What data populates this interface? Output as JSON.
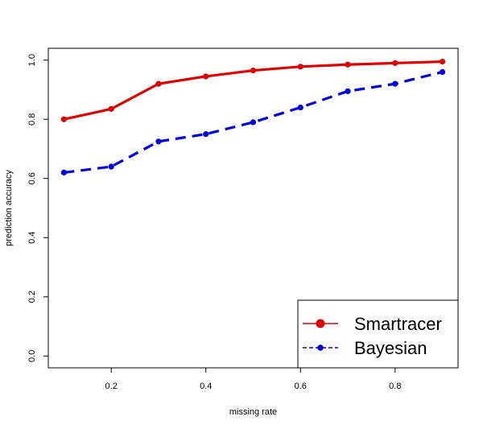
{
  "chart_data": {
    "type": "line",
    "title": "",
    "xlabel": "missing rate",
    "ylabel": "prediction accuracy",
    "xlim": [
      0.067,
      0.933
    ],
    "ylim": [
      -0.04,
      1.04
    ],
    "xticks": [
      0.2,
      0.4,
      0.6,
      0.8
    ],
    "xtick_labels": [
      "0.2",
      "0.4",
      "0.6",
      "0.8"
    ],
    "yticks": [
      0.0,
      0.2,
      0.4,
      0.6,
      0.8,
      1.0
    ],
    "ytick_labels": [
      "0.0",
      "0.2",
      "0.4",
      "0.6",
      "0.8",
      "1.0"
    ],
    "grid": false,
    "legend_position": "bottom-right",
    "x": [
      0.1,
      0.2,
      0.3,
      0.4,
      0.5,
      0.6,
      0.7,
      0.8,
      0.9
    ],
    "series": [
      {
        "name": "Smartracer",
        "color": "#e00000",
        "line_style": "solid",
        "values": [
          0.8,
          0.835,
          0.92,
          0.945,
          0.965,
          0.978,
          0.985,
          0.99,
          0.995
        ]
      },
      {
        "name": "Bayesian",
        "color": "#0000e0",
        "line_style": "dashed",
        "values": [
          0.62,
          0.64,
          0.725,
          0.75,
          0.79,
          0.84,
          0.895,
          0.92,
          0.96
        ]
      }
    ]
  }
}
